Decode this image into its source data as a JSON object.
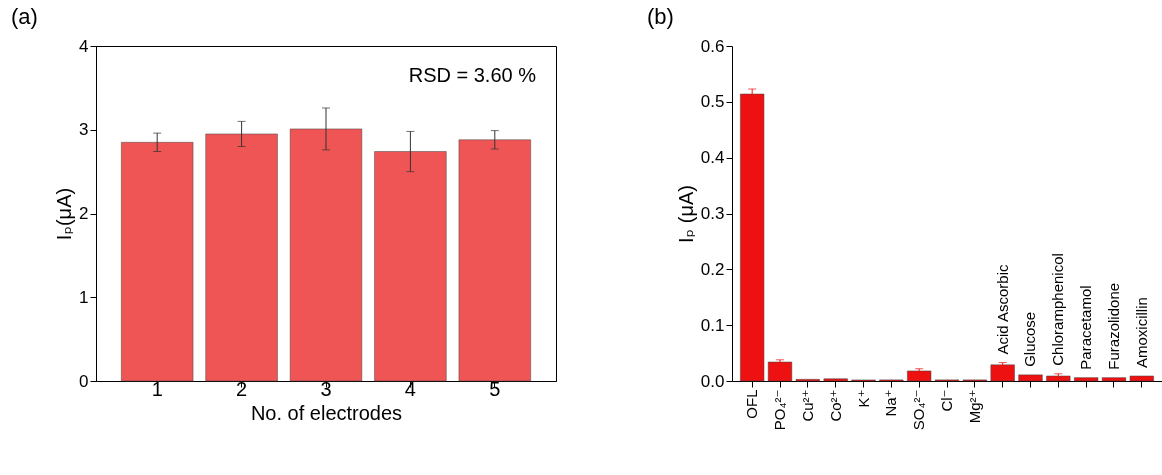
{
  "chart_data": [
    {
      "type": "bar",
      "title": "(a)",
      "xlabel": "No. of electrodes",
      "ylabel": "Iₚ(μA)",
      "categories": [
        "1",
        "2",
        "3",
        "4",
        "5"
      ],
      "values": [
        2.85,
        2.95,
        3.01,
        2.74,
        2.88
      ],
      "errors": [
        0.11,
        0.15,
        0.25,
        0.24,
        0.11
      ],
      "color": "#f05555",
      "ylim": [
        0,
        4
      ],
      "yticks": [
        0,
        1,
        2,
        3,
        4
      ],
      "annotations": [
        "RSD = 3.60 %"
      ]
    },
    {
      "type": "bar",
      "title": "(b)",
      "ylabel": "Iₚ (μA)",
      "categories": [
        "OFL",
        "PO₄²⁻",
        "Cu²⁺",
        "Co²⁺",
        "K⁺",
        "Na⁺",
        "SO₄²⁻",
        "Cl⁻",
        "Mg²⁺",
        "Acid Ascorbic",
        "Glucose",
        "Chloramphenicol",
        "Paracetamol",
        "Furazolidone",
        "Amoxicillin"
      ],
      "values": [
        0.514,
        0.034,
        0.003,
        0.004,
        0.002,
        0.002,
        0.018,
        0.002,
        0.002,
        0.029,
        0.011,
        0.009,
        0.006,
        0.006,
        0.009
      ],
      "errors": [
        0.009,
        0.004,
        null,
        null,
        null,
        null,
        0.004,
        null,
        null,
        0.004,
        null,
        0.004,
        null,
        null,
        null
      ],
      "color": "#ee1111",
      "ylim": [
        0,
        0.6
      ],
      "yticks": [
        {
          "value": 0,
          "label": "0.0"
        },
        0.1,
        0.2,
        0.3,
        0.4,
        0.5,
        0.6
      ]
    }
  ]
}
